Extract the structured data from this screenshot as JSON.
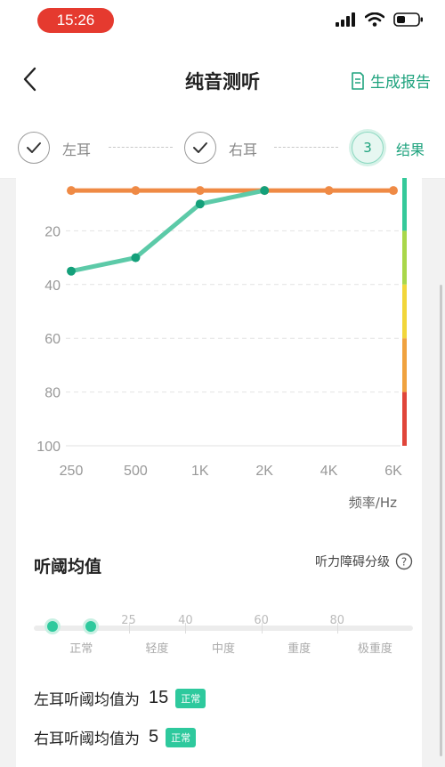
{
  "status": {
    "time": "15:26"
  },
  "header": {
    "title": "纯音测听",
    "report_label": "生成报告"
  },
  "steps": [
    {
      "label": "左耳",
      "state": "done"
    },
    {
      "label": "右耳",
      "state": "done"
    },
    {
      "label": "结果",
      "number": "3",
      "state": "active"
    }
  ],
  "chart_data": {
    "type": "line",
    "x": [
      "250",
      "500",
      "1K",
      "2K",
      "4K",
      "6K"
    ],
    "xlabel": "频率/Hz",
    "ylabel": "",
    "yticks": [
      "20",
      "40",
      "60",
      "80",
      "100"
    ],
    "ylim": [
      0,
      100
    ],
    "y_inverted": true,
    "grid": true,
    "series": [
      {
        "color": "#ef8a45",
        "values": [
          5,
          5,
          5,
          5,
          5,
          5
        ]
      },
      {
        "color": "#5ccaa8",
        "point_color": "#14a07a",
        "values": [
          35,
          30,
          10,
          5,
          null,
          null
        ]
      }
    ],
    "severity_bar": [
      {
        "from": 0,
        "to": 20,
        "color": "#35c99a"
      },
      {
        "from": 20,
        "to": 40,
        "color": "#a9d74a"
      },
      {
        "from": 40,
        "to": 60,
        "color": "#f2d63a"
      },
      {
        "from": 60,
        "to": 80,
        "color": "#f0a23f"
      },
      {
        "from": 80,
        "to": 100,
        "color": "#e0453a"
      }
    ]
  },
  "threshold": {
    "title": "听阈均值",
    "grade_label": "听力障碍分级",
    "ticks": [
      "25",
      "40",
      "60",
      "80"
    ],
    "categories": [
      "正常",
      "轻度",
      "中度",
      "重度",
      "极重度"
    ],
    "markers": [
      15,
      5
    ]
  },
  "results": [
    {
      "label": "左耳听阈均值为",
      "value": "15",
      "badge": "正常"
    },
    {
      "label": "右耳听阈均值为",
      "value": "5",
      "badge": "正常"
    }
  ],
  "colors": {
    "accent": "#1fa37e",
    "danger": "#e53a2f"
  }
}
